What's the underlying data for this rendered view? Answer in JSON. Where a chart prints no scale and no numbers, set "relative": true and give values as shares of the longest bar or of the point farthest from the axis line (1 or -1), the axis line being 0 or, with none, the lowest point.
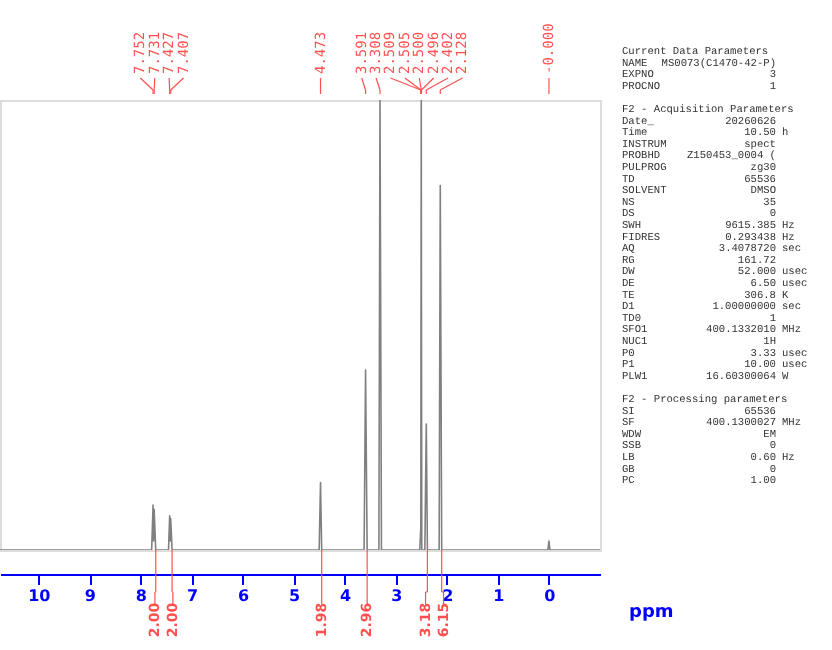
{
  "chart_data": {
    "type": "line",
    "relative": true,
    "xlabel": "ppm",
    "xlim": [
      10.75,
      -1.0
    ],
    "xticks": [
      10,
      9,
      8,
      7,
      6,
      5,
      4,
      3,
      2,
      1,
      0
    ],
    "grid": false,
    "tick_labels": "x",
    "marker": "none",
    "line_style": "solid",
    "series": [
      {
        "color": "#808080",
        "x": [
          10.75,
          7.78,
          7.752,
          7.742,
          7.731,
          7.7,
          7.45,
          7.427,
          7.417,
          7.407,
          7.38,
          4.5,
          4.473,
          4.45,
          3.62,
          3.591,
          3.56,
          3.33,
          3.308,
          3.28,
          2.53,
          2.509,
          2.505,
          2.5,
          2.496,
          2.49,
          2.43,
          2.402,
          2.38,
          2.15,
          2.128,
          2.1,
          0.02,
          0.0,
          -0.02,
          -1.0
        ],
        "values": [
          0,
          0,
          0.1,
          0.02,
          0.09,
          0,
          0,
          0.076,
          0.02,
          0.07,
          0,
          0,
          0.15,
          0,
          0,
          0.4,
          0,
          0,
          1,
          0,
          0,
          0.05,
          0.5,
          1,
          0.5,
          0,
          0,
          0.28,
          0,
          0,
          0.81,
          0,
          0,
          0.02,
          0,
          0
        ]
      }
    ],
    "annotations": [
      "7.752",
      "7.731",
      "7.427",
      "7.407",
      "4.473",
      "3.591",
      "3.308",
      "2.509",
      "2.505",
      "2.500",
      "2.496",
      "2.402",
      "2.128",
      "-0.000",
      {
        "text": "2.00",
        "x": 7.7,
        "y": 0
      },
      {
        "text": "2.00",
        "x": 7.38,
        "y": 0
      },
      {
        "text": "1.98",
        "x": 4.45,
        "y": 0
      },
      {
        "text": "2.96",
        "x": 3.56,
        "y": 0
      },
      {
        "text": "3.18",
        "x": 2.38,
        "y": 0
      },
      {
        "text": "6.15",
        "x": 2.1,
        "y": 0
      },
      "Current Data Parameters",
      "NAME  MS0073(C1470-42-P)",
      "EXPNO  3",
      "PROCNO  1",
      "F2 - Acquisition Parameters",
      "Date_  20260626",
      "Time  10.50  h",
      "INSTRUM  spect",
      "PROBHD  Z150453_0004 (",
      "PULPROG  zg30",
      "TD  65536",
      "SOLVENT  DMSO",
      "NS  35",
      "DS  0",
      "SWH  9615.385  Hz",
      "FIDRES  0.293438  Hz",
      "AQ  3.4078720  sec",
      "RG  161.72",
      "DW  52.000  usec",
      "DE  6.50  usec",
      "TE  306.8  K",
      "D1  1.00000000  sec",
      "TD0  1",
      "SFO1  400.1332010  MHz",
      "NUC1  1H",
      "P0  3.33  usec",
      "P1  10.00  usec",
      "PLW1  16.60300064  W",
      "F2 - Processing parameters",
      "SI  65536",
      "SF  400.1300027  MHz",
      "WDW  EM",
      "SSB  0",
      "LB  0.60  Hz",
      "GB  0",
      "PC  1.00"
    ]
  }
}
